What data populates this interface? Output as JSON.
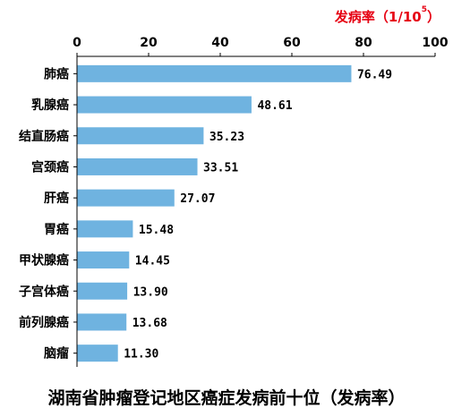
{
  "chart_data": {
    "type": "bar",
    "orientation": "horizontal",
    "title": "湖南省肿瘤登记地区癌症发病前十位（发病率）",
    "unit_label": "发病率（1/10",
    "unit_superscript": "5",
    "unit_close": "）",
    "categories": [
      "肺癌",
      "乳腺癌",
      "结直肠癌",
      "宫颈癌",
      "肝癌",
      "胃癌",
      "甲状腺癌",
      "子宫体癌",
      "前列腺癌",
      "脑瘤"
    ],
    "values": [
      76.49,
      48.61,
      35.23,
      33.51,
      27.07,
      15.48,
      14.45,
      13.9,
      13.68,
      11.3
    ],
    "value_labels": [
      "76.49",
      "48.61",
      "35.23",
      "33.51",
      "27.07",
      "15.48",
      "14.45",
      "13.90",
      "13.68",
      "11.30"
    ],
    "xlim": [
      0,
      100
    ],
    "xticks": [
      0,
      20,
      40,
      60,
      80,
      100
    ],
    "tick_labels": [
      "0",
      "20",
      "40",
      "60",
      "80",
      "100"
    ],
    "axis_position": "top",
    "grid": false,
    "bar_color": "#6fb3e0",
    "unit_color": "#e60012"
  }
}
